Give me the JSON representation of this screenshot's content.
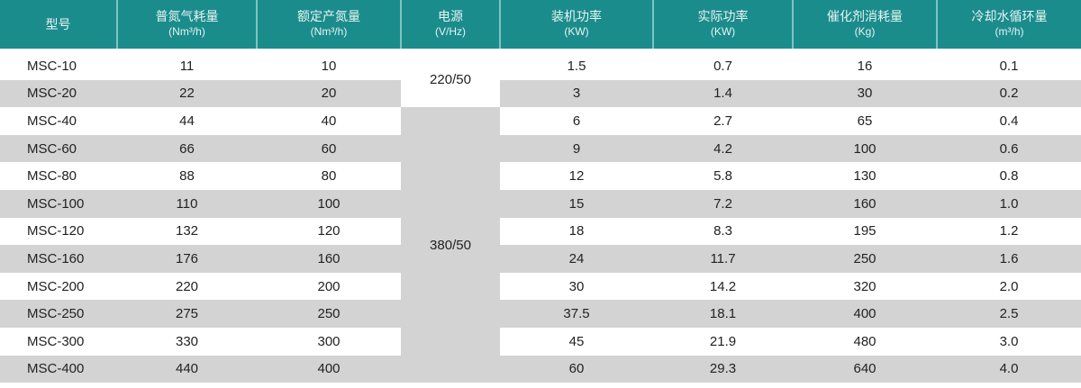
{
  "header": [
    {
      "title": "型号",
      "unit": ""
    },
    {
      "title": "普氮气耗量",
      "unit": "(Nm³/h)"
    },
    {
      "title": "额定产氮量",
      "unit": "(Nm³/h)"
    },
    {
      "title": "电源",
      "unit": "(V/Hz)"
    },
    {
      "title": "装机功率",
      "unit": "(KW)"
    },
    {
      "title": "实际功率",
      "unit": "(KW)"
    },
    {
      "title": "催化剂消耗量",
      "unit": "(Kg)"
    },
    {
      "title": "冷却水循环量",
      "unit": "(m³/h)"
    }
  ],
  "power_groups": [
    "220/50",
    "380/50"
  ],
  "rows": [
    [
      "MSC-10",
      "11",
      "10",
      "1.5",
      "0.7",
      "16",
      "0.1"
    ],
    [
      "MSC-20",
      "22",
      "20",
      "3",
      "1.4",
      "30",
      "0.2"
    ],
    [
      "MSC-40",
      "44",
      "40",
      "6",
      "2.7",
      "65",
      "0.4"
    ],
    [
      "MSC-60",
      "66",
      "60",
      "9",
      "4.2",
      "100",
      "0.6"
    ],
    [
      "MSC-80",
      "88",
      "80",
      "12",
      "5.8",
      "130",
      "0.8"
    ],
    [
      "MSC-100",
      "110",
      "100",
      "15",
      "7.2",
      "160",
      "1.0"
    ],
    [
      "MSC-120",
      "132",
      "120",
      "18",
      "8.3",
      "195",
      "1.2"
    ],
    [
      "MSC-160",
      "176",
      "160",
      "24",
      "11.7",
      "250",
      "1.6"
    ],
    [
      "MSC-200",
      "220",
      "200",
      "30",
      "14.2",
      "320",
      "2.0"
    ],
    [
      "MSC-250",
      "275",
      "250",
      "37.5",
      "18.1",
      "400",
      "2.5"
    ],
    [
      "MSC-300",
      "330",
      "300",
      "45",
      "21.9",
      "480",
      "3.0"
    ],
    [
      "MSC-400",
      "440",
      "400",
      "60",
      "29.3",
      "640",
      "4.0"
    ]
  ],
  "colors": {
    "header_bg": "#1b8c8c",
    "stripe": "#d3d3d3"
  }
}
